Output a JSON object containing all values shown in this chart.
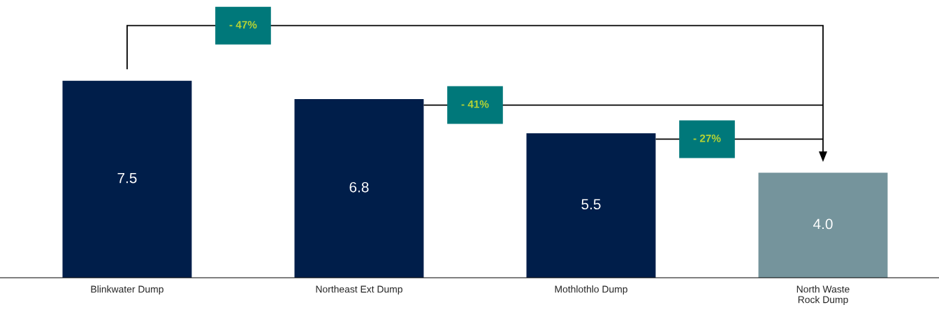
{
  "chart_data": {
    "type": "bar",
    "categories": [
      "Blinkwater Dump",
      "Northeast Ext Dump",
      "Mothlothlo Dump",
      "North Waste\nRock Dump"
    ],
    "values": [
      7.5,
      6.8,
      5.5,
      4.0
    ],
    "colors": [
      "#001e4a",
      "#001e4a",
      "#001e4a",
      "#75949c"
    ],
    "data_labels": true,
    "value_labels": [
      "7.5",
      "6.8",
      "5.5",
      "4.0"
    ],
    "annotations": [
      "- 47%",
      "- 41%",
      "- 27%"
    ]
  }
}
